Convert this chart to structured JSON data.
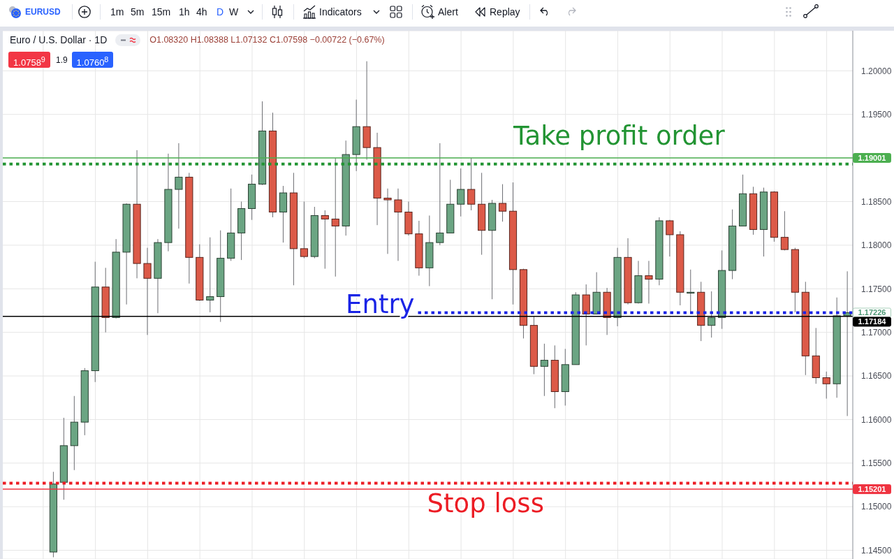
{
  "chart_data": {
    "type": "candlestick",
    "title": "Euro / U.S. Dollar · 1D",
    "subtitle": "O1.08320 H1.08388 L1.07132 C1.07598 −0.00722 (−0.67%)",
    "categories": [
      null,
      null,
      null,
      null,
      null,
      null,
      null,
      null,
      null,
      null,
      null,
      null,
      null,
      null,
      null,
      null,
      null,
      null,
      null,
      null,
      null,
      null,
      null,
      null,
      null,
      null,
      null,
      null,
      null,
      null,
      null,
      null,
      null,
      null,
      null,
      null,
      null,
      null,
      null,
      null,
      null,
      null,
      null,
      null,
      null,
      null,
      null,
      null,
      null,
      null,
      null,
      null,
      null,
      null,
      null,
      null,
      null,
      null,
      null,
      null,
      null,
      null,
      null,
      null,
      null,
      null,
      null,
      null,
      null,
      null,
      null,
      null,
      null,
      null,
      null,
      null,
      null,
      null,
      null,
      null,
      null
    ],
    "ohlc": [
      null,
      null,
      null,
      null,
      [
        1.1448,
        1.154,
        1.1442,
        1.1526
      ],
      [
        1.1528,
        1.1602,
        1.1508,
        1.157
      ],
      [
        1.157,
        1.1627,
        1.1542,
        1.1597
      ],
      [
        1.1597,
        1.1659,
        1.1582,
        1.1656
      ],
      [
        1.1656,
        1.1781,
        1.1643,
        1.1752
      ],
      [
        1.1752,
        1.1774,
        1.17,
        1.1717
      ],
      [
        1.1717,
        1.1807,
        1.1716,
        1.1792
      ],
      [
        1.1792,
        1.1848,
        1.1732,
        1.1847
      ],
      [
        1.1847,
        1.1909,
        1.1762,
        1.1779
      ],
      [
        1.1779,
        1.1797,
        1.1697,
        1.1762
      ],
      [
        1.1762,
        1.1807,
        1.1722,
        1.1803
      ],
      [
        1.1803,
        1.1905,
        1.1793,
        1.1864
      ],
      [
        1.1864,
        1.1917,
        1.1819,
        1.1878
      ],
      [
        1.1878,
        1.1883,
        1.1756,
        1.1786
      ],
      [
        1.1786,
        1.1801,
        1.1736,
        1.1737
      ],
      [
        1.1737,
        1.1809,
        1.1723,
        1.1741
      ],
      [
        1.1741,
        1.1817,
        1.1712,
        1.1785
      ],
      [
        1.1785,
        1.1865,
        1.1782,
        1.1814
      ],
      [
        1.1814,
        1.185,
        1.1783,
        1.1842
      ],
      [
        1.1842,
        1.1881,
        1.1829,
        1.187
      ],
      [
        1.187,
        1.1965,
        1.1869,
        1.1931
      ],
      [
        1.1931,
        1.1952,
        1.1832,
        1.1838
      ],
      [
        1.1838,
        1.1868,
        1.1803,
        1.186
      ],
      [
        1.186,
        1.1883,
        1.1754,
        1.1796
      ],
      [
        1.1796,
        1.185,
        1.1785,
        1.1787
      ],
      [
        1.1787,
        1.1844,
        1.1785,
        1.1834
      ],
      [
        1.1834,
        1.184,
        1.1773,
        1.183
      ],
      [
        1.183,
        1.19,
        1.1764,
        1.1822
      ],
      [
        1.1822,
        1.192,
        1.1811,
        1.1904
      ],
      [
        1.1904,
        1.1967,
        1.1885,
        1.1936
      ],
      [
        1.1936,
        1.2011,
        1.1898,
        1.1912
      ],
      [
        1.1912,
        1.1929,
        1.1823,
        1.1854
      ],
      [
        1.1854,
        1.1865,
        1.179,
        1.1852
      ],
      [
        1.1852,
        1.1865,
        1.1782,
        1.1838
      ],
      [
        1.1838,
        1.185,
        1.1811,
        1.1813
      ],
      [
        1.1813,
        1.1828,
        1.1765,
        1.1774
      ],
      [
        1.1774,
        1.1834,
        1.1753,
        1.1803
      ],
      [
        1.1803,
        1.1917,
        1.18,
        1.1814
      ],
      [
        1.1814,
        1.1875,
        1.1814,
        1.1847
      ],
      [
        1.1847,
        1.1888,
        1.1833,
        1.1864
      ],
      [
        1.1864,
        1.19,
        1.184,
        1.1847
      ],
      [
        1.1847,
        1.1883,
        1.1789,
        1.1817
      ],
      [
        1.1817,
        1.1852,
        1.1738,
        1.1848
      ],
      [
        1.1848,
        1.187,
        1.1827,
        1.1839
      ],
      [
        1.1839,
        1.1872,
        1.1732,
        1.1772
      ],
      [
        1.1772,
        1.1773,
        1.1693,
        1.1708
      ],
      [
        1.1708,
        1.1718,
        1.1652,
        1.1661
      ],
      [
        1.1661,
        1.1687,
        1.1627,
        1.1668
      ],
      [
        1.1668,
        1.1685,
        1.1613,
        1.1632
      ],
      [
        1.1632,
        1.1681,
        1.1616,
        1.1663
      ],
      [
        1.1663,
        1.1746,
        1.1663,
        1.1743
      ],
      [
        1.1743,
        1.1755,
        1.1685,
        1.1721
      ],
      [
        1.1721,
        1.1769,
        1.1721,
        1.1746
      ],
      [
        1.1746,
        1.1751,
        1.1697,
        1.1717
      ],
      [
        1.1717,
        1.1797,
        1.1707,
        1.1786
      ],
      [
        1.1786,
        1.1808,
        1.1732,
        1.1734
      ],
      [
        1.1734,
        1.1782,
        1.1733,
        1.1765
      ],
      [
        1.1765,
        1.1782,
        1.1733,
        1.1761
      ],
      [
        1.1761,
        1.1832,
        1.1754,
        1.1828
      ],
      [
        1.1828,
        1.1829,
        1.1787,
        1.1812
      ],
      [
        1.1812,
        1.1816,
        1.1731,
        1.1746
      ],
      [
        1.1745,
        1.1772,
        1.1723,
        1.1746
      ],
      [
        1.1746,
        1.1758,
        1.169,
        1.1708
      ],
      [
        1.1708,
        1.1747,
        1.1694,
        1.1717
      ],
      [
        1.1717,
        1.1794,
        1.1704,
        1.1771
      ],
      [
        1.1771,
        1.1841,
        1.1761,
        1.1822
      ],
      [
        1.1822,
        1.1881,
        1.1822,
        1.1859
      ],
      [
        1.1859,
        1.1867,
        1.1812,
        1.1818
      ],
      [
        1.1818,
        1.1866,
        1.1787,
        1.1861
      ],
      [
        1.1861,
        1.1862,
        1.1804,
        1.1809
      ],
      [
        1.1809,
        1.1839,
        1.1794,
        1.1795
      ],
      [
        1.1795,
        1.1797,
        1.1723,
        1.1746
      ],
      [
        1.1746,
        1.1758,
        1.1651,
        1.1673
      ],
      [
        1.1673,
        1.1705,
        1.1641,
        1.1648
      ],
      [
        1.1648,
        1.1655,
        1.1624,
        1.1641
      ],
      [
        1.1641,
        1.174,
        1.1625,
        1.1719
      ],
      [
        1.1719,
        1.177,
        1.1604,
        1.17226
      ]
    ],
    "colors": [
      null,
      null,
      null,
      null,
      "#6ba583",
      "#6ba583",
      "#6ba583",
      "#6ba583",
      "#6ba583",
      "#dc5a48",
      "#6ba583",
      "#6ba583",
      "#dc5a48",
      "#dc5a48",
      "#6ba583",
      "#6ba583",
      "#6ba583",
      "#dc5a48",
      "#dc5a48",
      "#6ba583",
      "#6ba583",
      "#6ba583",
      "#6ba583",
      "#6ba583",
      "#6ba583",
      "#dc5a48",
      "#6ba583",
      "#dc5a48",
      "#dc5a48",
      "#6ba583",
      "#dc5a48",
      "#dc5a48",
      "#6ba583",
      "#6ba583",
      "#dc5a48",
      "#dc5a48",
      "#dc5a48",
      "#dc5a48",
      "#dc5a48",
      "#dc5a48",
      "#6ba583",
      "#6ba583",
      "#6ba583",
      "#6ba583",
      "#dc5a48",
      "#dc5a48",
      "#6ba583",
      "#dc5a48",
      "#dc5a48",
      "#dc5a48",
      "#dc5a48",
      "#6ba583",
      "#dc5a48",
      "#6ba583",
      "#6ba583",
      "#dc5a48",
      "#6ba583",
      "#dc5a48",
      "#6ba583",
      "#dc5a48",
      "#6ba583",
      "#dc5a48",
      "#6ba583",
      "#dc5a48",
      "#dc5a48",
      "#6ba583",
      "#dc5a48",
      "#6ba583",
      "#6ba583",
      "#6ba583",
      "#6ba583",
      "#dc5a48",
      "#6ba583",
      "#dc5a48",
      "#dc5a48",
      "#dc5a48",
      "#dc5a48",
      "#dc5a48",
      "#dc5a48",
      "#6ba583",
      "#6ba583"
    ],
    "ylim": [
      1.144,
      1.2046
    ],
    "yticks": [
      {
        "value": 1.145,
        "label": "1.14500"
      },
      {
        "value": 1.15,
        "label": "1.15000"
      },
      {
        "value": 1.155,
        "label": "1.15500"
      },
      {
        "value": 1.16,
        "label": "1.16000"
      },
      {
        "value": 1.165,
        "label": "1.16500"
      },
      {
        "value": 1.17,
        "label": "1.17000"
      },
      {
        "value": 1.175,
        "label": "1.17500"
      },
      {
        "value": 1.18,
        "label": "1.18000"
      },
      {
        "value": 1.185,
        "label": "1.18500"
      },
      {
        "value": 1.19,
        "label": null
      },
      {
        "value": 1.195,
        "label": "1.19500"
      },
      {
        "value": 1.2,
        "label": "1.20000"
      }
    ],
    "grid": true,
    "tick_labels": "y",
    "ref_lines": [
      {
        "axis": "y",
        "value": 1.19001,
        "label": "1.19001",
        "color": "#4caf50",
        "line_style": "solid"
      },
      {
        "axis": "y",
        "value": 1.1893,
        "label": "Take profit order",
        "color": "#229433",
        "line_style": "dotted"
      },
      {
        "axis": "y",
        "value": 1.17226,
        "label": "Entry",
        "color": "#1a24e6",
        "line_style": "dotted"
      },
      {
        "axis": "y",
        "value": 1.17184,
        "label": "1.17184",
        "color": "#000000",
        "line_style": "solid"
      },
      {
        "axis": "y",
        "value": 1.1527,
        "label": "Stop loss",
        "color": "#ec1c24",
        "line_style": "dotted"
      },
      {
        "axis": "y",
        "value": 1.15201,
        "label": "1.15201",
        "color": "#ef3340",
        "line_style": "solid"
      }
    ],
    "annotations": [
      "EURUSD",
      "1m",
      "5m",
      "15m",
      "1h",
      "4h",
      "D",
      "W",
      "Indicators",
      "Alert",
      "Replay",
      "1.0758$^{9}$",
      "1.9",
      "1.0760$^{8}$",
      "1.17226"
    ]
  }
}
